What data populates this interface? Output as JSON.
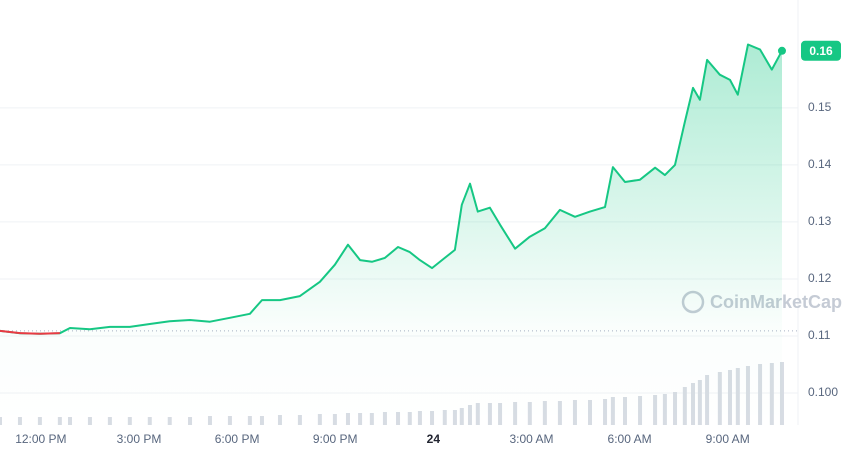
{
  "chart_data": {
    "type": "line",
    "watermark": "CoinMarketCap",
    "x": [
      -1.25,
      -0.64,
      -0.03,
      0.58,
      0.89,
      1.5,
      2.11,
      2.72,
      3.33,
      3.94,
      4.56,
      5.17,
      5.78,
      6.39,
      6.76,
      7.31,
      7.92,
      8.53,
      8.99,
      9.39,
      9.76,
      10.12,
      10.52,
      10.92,
      11.28,
      11.59,
      11.96,
      12.35,
      12.66,
      12.87,
      13.12,
      13.36,
      13.73,
      14.04,
      14.5,
      14.95,
      15.41,
      15.87,
      16.33,
      16.79,
      17.25,
      17.49,
      17.86,
      18.32,
      18.78,
      19.08,
      19.39,
      19.69,
      19.94,
      20.15,
      20.37,
      20.76,
      21.07,
      21.31,
      21.62,
      21.99,
      22.35,
      22.66
    ],
    "series": [
      {
        "color": "#16c784",
        "below_color": "#ea3943",
        "values": [
          0.1109,
          0.1105,
          0.1104,
          0.1105,
          0.1114,
          0.1112,
          0.1116,
          0.1116,
          0.1121,
          0.1126,
          0.1128,
          0.1125,
          0.1132,
          0.1139,
          0.1163,
          0.1163,
          0.117,
          0.1195,
          0.1225,
          0.126,
          0.1233,
          0.123,
          0.1237,
          0.1256,
          0.1247,
          0.1233,
          0.1219,
          0.1237,
          0.1251,
          0.133,
          0.1367,
          0.1318,
          0.1325,
          0.1295,
          0.1253,
          0.1274,
          0.1289,
          0.1321,
          0.1309,
          0.1318,
          0.1326,
          0.1396,
          0.137,
          0.1374,
          0.1395,
          0.1382,
          0.14,
          0.1475,
          0.1535,
          0.1514,
          0.1584,
          0.1558,
          0.1549,
          0.1523,
          0.1611,
          0.1602,
          0.1567,
          0.16
        ]
      }
    ],
    "reference_price": 0.1109,
    "volume": {
      "color": "#d7dce3",
      "ylim": [
        0,
        100
      ],
      "values": [
        8,
        8,
        8,
        8,
        8,
        8,
        8,
        8,
        8,
        8,
        8,
        9,
        9,
        9,
        9,
        10,
        10,
        11,
        11,
        12,
        12,
        12,
        13,
        13,
        13,
        14,
        14,
        15,
        15,
        17,
        20,
        22,
        22,
        22,
        23,
        23,
        24,
        24,
        25,
        25,
        26,
        28,
        28,
        29,
        30,
        31,
        33,
        38,
        42,
        45,
        50,
        53,
        55,
        57,
        59,
        61,
        62,
        63
      ]
    },
    "xlim": [
      -1.25,
      23.15
    ],
    "xticks": [
      {
        "value": 0,
        "label": "12:00 PM"
      },
      {
        "value": 3,
        "label": "3:00 PM"
      },
      {
        "value": 6,
        "label": "6:00 PM"
      },
      {
        "value": 9,
        "label": "9:00 PM"
      },
      {
        "value": 12,
        "label": "24"
      },
      {
        "value": 15,
        "label": "3:00 AM"
      },
      {
        "value": 18,
        "label": "6:00 AM"
      },
      {
        "value": 21,
        "label": "9:00 AM"
      }
    ],
    "ylim": [
      0.0944,
      0.1689
    ],
    "yticks": [
      {
        "value": 0.1,
        "label": "0.100"
      },
      0.11,
      0.12,
      0.13,
      0.14,
      0.15
    ],
    "grid": true
  }
}
